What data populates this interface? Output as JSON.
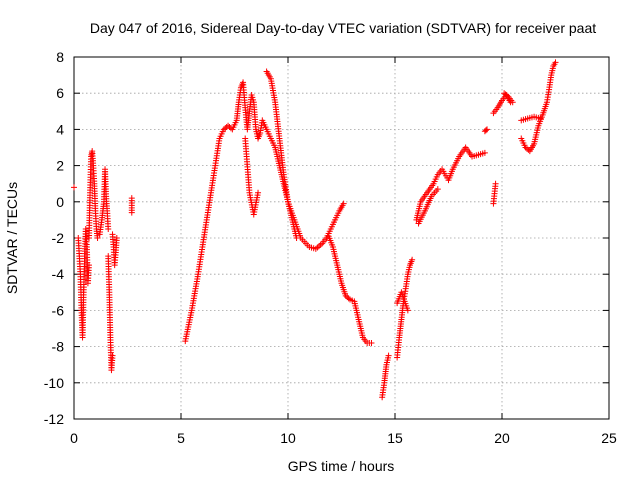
{
  "chart_data": {
    "type": "scatter",
    "title": "Day 047 of 2016, Sidereal Day-to-day VTEC variation (SDTVAR) for receiver paat",
    "xlabel": "GPS time / hours",
    "ylabel": "SDTVAR / TECUs",
    "xlim": [
      0,
      25
    ],
    "ylim": [
      -12,
      8
    ],
    "xticks": [
      0,
      5,
      10,
      15,
      20,
      25
    ],
    "yticks": [
      -12,
      -10,
      -8,
      -6,
      -4,
      -2,
      0,
      2,
      4,
      6,
      8
    ],
    "grid": true,
    "marker": "+",
    "color": "#ff0000",
    "series": [
      {
        "name": "SDTVAR",
        "segments": [
          [
            [
              0.0,
              0.8
            ]
          ],
          [
            [
              0.2,
              -2.0
            ],
            [
              0.3,
              -4.0
            ],
            [
              0.35,
              -6.0
            ],
            [
              0.4,
              -7.5
            ],
            [
              0.45,
              -5.0
            ],
            [
              0.5,
              -3.0
            ],
            [
              0.55,
              -1.5
            ],
            [
              0.6,
              -2.5
            ],
            [
              0.65,
              -4.5
            ],
            [
              0.7,
              -3.5
            ]
          ],
          [
            [
              0.7,
              -2.0
            ],
            [
              0.75,
              0.5
            ],
            [
              0.8,
              2.5
            ],
            [
              0.85,
              2.8
            ],
            [
              0.9,
              2.0
            ],
            [
              0.95,
              1.0
            ],
            [
              1.0,
              -0.5
            ],
            [
              1.05,
              -1.5
            ],
            [
              1.1,
              -2.0
            ]
          ],
          [
            [
              1.2,
              -1.8
            ],
            [
              1.3,
              -1.0
            ],
            [
              1.4,
              0.0
            ],
            [
              1.45,
              1.8
            ],
            [
              1.5,
              0.3
            ],
            [
              1.55,
              -0.5
            ],
            [
              1.6,
              -1.5
            ]
          ],
          [
            [
              1.6,
              -3.0
            ],
            [
              1.65,
              -5.0
            ],
            [
              1.7,
              -7.5
            ],
            [
              1.75,
              -9.3
            ],
            [
              1.8,
              -8.5
            ]
          ],
          [
            [
              1.8,
              -1.8
            ],
            [
              1.85,
              -2.5
            ],
            [
              1.9,
              -3.5
            ],
            [
              1.95,
              -2.8
            ],
            [
              2.0,
              -2.0
            ]
          ],
          [
            [
              2.7,
              0.2
            ],
            [
              2.7,
              -0.6
            ]
          ],
          [
            [
              5.2,
              -7.7
            ],
            [
              5.5,
              -6.0
            ],
            [
              5.8,
              -4.0
            ],
            [
              6.0,
              -2.5
            ],
            [
              6.2,
              -1.0
            ],
            [
              6.4,
              0.5
            ],
            [
              6.6,
              2.0
            ],
            [
              6.8,
              3.5
            ],
            [
              7.0,
              4.0
            ],
            [
              7.2,
              4.2
            ],
            [
              7.4,
              4.0
            ],
            [
              7.6,
              4.5
            ],
            [
              7.7,
              5.5
            ],
            [
              7.8,
              6.3
            ],
            [
              7.9,
              6.6
            ],
            [
              8.0,
              5.2
            ],
            [
              8.1,
              4.0
            ],
            [
              8.2,
              5.0
            ],
            [
              8.3,
              5.9
            ],
            [
              8.4,
              5.5
            ],
            [
              8.5,
              4.0
            ],
            [
              8.6,
              3.5
            ],
            [
              8.7,
              3.8
            ],
            [
              8.8,
              4.5
            ],
            [
              9.0,
              4.0
            ],
            [
              9.2,
              3.5
            ],
            [
              9.4,
              3.0
            ],
            [
              9.6,
              2.0
            ],
            [
              9.8,
              1.0
            ],
            [
              10.0,
              0.0
            ],
            [
              10.3,
              -1.0
            ],
            [
              10.6,
              -2.0
            ],
            [
              11.0,
              -2.5
            ],
            [
              11.3,
              -2.6
            ],
            [
              11.6,
              -2.3
            ],
            [
              11.8,
              -2.0
            ],
            [
              12.0,
              -1.5
            ],
            [
              12.2,
              -1.0
            ],
            [
              12.4,
              -0.5
            ],
            [
              12.6,
              -0.1
            ]
          ],
          [
            [
              8.0,
              3.5
            ],
            [
              8.2,
              0.5
            ],
            [
              8.4,
              -0.7
            ],
            [
              8.6,
              0.5
            ]
          ],
          [
            [
              9.0,
              7.2
            ],
            [
              9.2,
              6.8
            ],
            [
              9.4,
              5.5
            ],
            [
              9.6,
              3.5
            ],
            [
              9.8,
              1.5
            ],
            [
              10.0,
              0.0
            ],
            [
              10.2,
              -1.0
            ],
            [
              10.4,
              -2.0
            ]
          ],
          [
            [
              11.9,
              -1.9
            ],
            [
              12.1,
              -2.5
            ],
            [
              12.3,
              -3.5
            ],
            [
              12.5,
              -4.5
            ],
            [
              12.7,
              -5.2
            ],
            [
              12.9,
              -5.4
            ],
            [
              13.1,
              -5.5
            ],
            [
              13.3,
              -6.5
            ],
            [
              13.5,
              -7.5
            ],
            [
              13.7,
              -7.8
            ],
            [
              13.9,
              -7.8
            ]
          ],
          [
            [
              14.4,
              -10.8
            ],
            [
              14.5,
              -10.0
            ],
            [
              14.6,
              -9.0
            ],
            [
              14.7,
              -8.5
            ]
          ],
          [
            [
              15.1,
              -8.6
            ],
            [
              15.2,
              -7.5
            ],
            [
              15.3,
              -6.5
            ],
            [
              15.4,
              -5.5
            ],
            [
              15.5,
              -4.8
            ],
            [
              15.6,
              -4.0
            ],
            [
              15.7,
              -3.5
            ],
            [
              15.8,
              -3.2
            ]
          ],
          [
            [
              15.1,
              -5.6
            ],
            [
              15.3,
              -5.0
            ],
            [
              15.6,
              -6.0
            ]
          ],
          [
            [
              16.0,
              -1.0
            ],
            [
              16.2,
              0.0
            ],
            [
              16.5,
              0.5
            ],
            [
              16.8,
              1.0
            ],
            [
              17.0,
              1.5
            ],
            [
              17.2,
              1.8
            ],
            [
              17.5,
              1.2
            ],
            [
              17.7,
              1.8
            ],
            [
              18.0,
              2.5
            ],
            [
              18.3,
              3.0
            ],
            [
              18.6,
              2.5
            ],
            [
              18.9,
              2.6
            ],
            [
              19.2,
              2.7
            ]
          ],
          [
            [
              16.1,
              -1.2
            ],
            [
              16.4,
              -0.5
            ],
            [
              16.7,
              0.3
            ],
            [
              17.0,
              0.7
            ]
          ],
          [
            [
              19.2,
              3.9
            ],
            [
              19.3,
              4.0
            ]
          ],
          [
            [
              19.6,
              -0.1
            ],
            [
              19.7,
              1.0
            ]
          ],
          [
            [
              19.6,
              4.9
            ],
            [
              19.8,
              5.2
            ],
            [
              20.0,
              5.6
            ],
            [
              20.2,
              5.9
            ],
            [
              20.4,
              5.5
            ]
          ],
          [
            [
              20.1,
              6.0
            ],
            [
              20.3,
              5.8
            ],
            [
              20.5,
              5.5
            ]
          ],
          [
            [
              20.9,
              3.5
            ],
            [
              21.1,
              3.0
            ],
            [
              21.3,
              2.8
            ],
            [
              21.5,
              3.2
            ],
            [
              21.7,
              4.2
            ],
            [
              21.9,
              4.8
            ],
            [
              22.1,
              5.5
            ],
            [
              22.2,
              6.2
            ],
            [
              22.3,
              7.0
            ],
            [
              22.4,
              7.5
            ],
            [
              22.5,
              7.7
            ]
          ],
          [
            [
              20.9,
              4.5
            ],
            [
              21.2,
              4.6
            ],
            [
              21.5,
              4.7
            ],
            [
              21.8,
              4.6
            ]
          ]
        ]
      }
    ]
  }
}
